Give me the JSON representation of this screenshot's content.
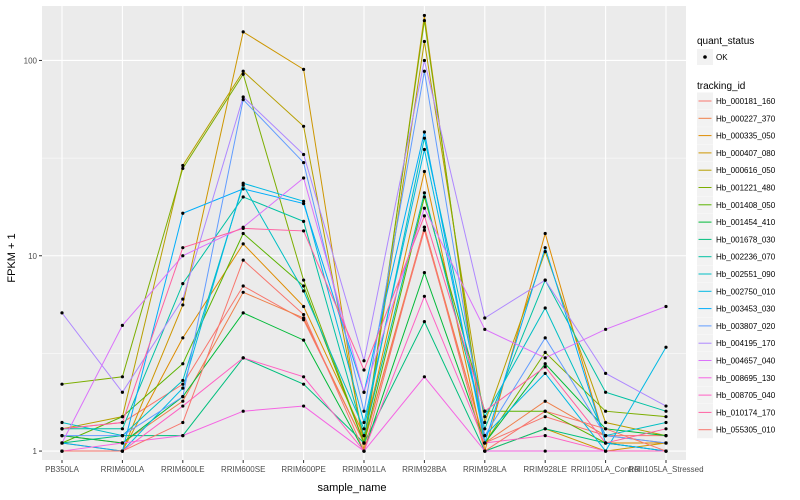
{
  "chart_data": {
    "type": "line",
    "xlabel": "sample_name",
    "ylabel": "FPKM + 1",
    "y_scale": "log10",
    "ylim": [
      0.9,
      190
    ],
    "y_ticks": [
      1,
      10,
      100
    ],
    "y_tick_labels": [
      "1",
      "10",
      "100"
    ],
    "grid": true,
    "legend_position": "right",
    "categories": [
      "PB350LA",
      "RRIM600LA",
      "RRIM600LE",
      "RRIM600SE",
      "RRIM600PE",
      "RRIM901LA",
      "RRIM928BA",
      "RRIM928LA",
      "RRIM928LE",
      "RRII105LA_Control",
      "RRII105LA_Stressed"
    ],
    "legend_shape": {
      "title": "quant_status",
      "entries": [
        "OK"
      ]
    },
    "legend_color": {
      "title": "tracking_id"
    },
    "series": [
      {
        "name": "Hb_000181_160",
        "color": "#F8766D",
        "values": [
          1.3,
          1.4,
          2.2,
          7.0,
          4.7,
          1.1,
          13.5,
          1.1,
          1.5,
          1.2,
          1.2
        ]
      },
      {
        "name": "Hb_000227_370",
        "color": "#EF7F49",
        "values": [
          1.2,
          1.1,
          1.8,
          6.5,
          4.8,
          1.1,
          14.0,
          1.1,
          1.8,
          1.2,
          1.1
        ]
      },
      {
        "name": "Hb_000335_050",
        "color": "#DE8C00",
        "values": [
          1.1,
          1.0,
          3.8,
          11.5,
          5.5,
          1.2,
          27.0,
          1.0,
          13.0,
          1.1,
          1.1
        ]
      },
      {
        "name": "Hb_000407_080",
        "color": "#CD9600",
        "values": [
          1.0,
          1.0,
          5.6,
          140,
          90,
          1.0,
          170,
          1.0,
          1.3,
          1.0,
          1.1
        ]
      },
      {
        "name": "Hb_000616_050",
        "color": "#B79F00",
        "values": [
          1.3,
          1.5,
          29.0,
          88,
          46,
          1.1,
          125,
          1.4,
          10.5,
          1.4,
          1.2
        ]
      },
      {
        "name": "Hb_001221_480",
        "color": "#7CAE00",
        "values": [
          2.2,
          2.4,
          28.0,
          85,
          7.5,
          1.1,
          160,
          1.1,
          3.2,
          1.6,
          1.5
        ]
      },
      {
        "name": "Hb_001408_050",
        "color": "#5BB300",
        "values": [
          1.1,
          1.5,
          2.8,
          13.0,
          7.0,
          1.1,
          20.0,
          1.6,
          1.6,
          1.1,
          1.0
        ]
      },
      {
        "name": "Hb_001454_410",
        "color": "#00BA38",
        "values": [
          1.2,
          1.1,
          1.9,
          5.1,
          3.7,
          1.0,
          8.2,
          1.1,
          2.8,
          1.3,
          1.2
        ]
      },
      {
        "name": "Hb_001678_030",
        "color": "#00BF7D",
        "values": [
          1.1,
          1.2,
          1.2,
          3.0,
          2.2,
          1.1,
          4.6,
          1.0,
          1.3,
          1.1,
          1.0
        ]
      },
      {
        "name": "Hb_002236_070",
        "color": "#00C1A3",
        "values": [
          1.3,
          1.3,
          7.2,
          20.0,
          15.0,
          1.2,
          21.0,
          1.3,
          7.5,
          2.0,
          1.6
        ]
      },
      {
        "name": "Hb_002551_090",
        "color": "#00BFC4",
        "values": [
          1.4,
          1.2,
          2.3,
          23.0,
          6.6,
          1.3,
          40.0,
          1.5,
          5.4,
          1.2,
          1.4
        ]
      },
      {
        "name": "Hb_002750_010",
        "color": "#00B9E3",
        "values": [
          1.0,
          1.0,
          2.1,
          23.5,
          19.0,
          1.4,
          35.0,
          1.2,
          2.5,
          1.0,
          3.4
        ]
      },
      {
        "name": "Hb_003453_030",
        "color": "#00ADFA",
        "values": [
          1.1,
          1.0,
          16.5,
          22.0,
          18.5,
          2.0,
          43.0,
          1.1,
          11.0,
          1.1,
          1.0
        ]
      },
      {
        "name": "Hb_003807_020",
        "color": "#619CFF",
        "values": [
          1.2,
          1.2,
          1.9,
          63,
          30,
          1.6,
          88,
          1.2,
          3.8,
          1.2,
          1.1
        ]
      },
      {
        "name": "Hb_004195_170",
        "color": "#AE87FF",
        "values": [
          5.1,
          2.0,
          6.0,
          65,
          33,
          2.9,
          100,
          4.8,
          7.5,
          2.5,
          1.7
        ]
      },
      {
        "name": "Hb_004657_040",
        "color": "#DB72FB",
        "values": [
          1.1,
          4.4,
          10.0,
          14.0,
          25.0,
          2.0,
          17.5,
          4.2,
          3.0,
          4.2,
          5.5
        ]
      },
      {
        "name": "Hb_008695_130",
        "color": "#F564E3",
        "values": [
          1.0,
          1.1,
          1.2,
          1.6,
          1.7,
          1.0,
          2.4,
          1.0,
          1.0,
          1.0,
          1.0
        ]
      },
      {
        "name": "Hb_008705_040",
        "color": "#FF61C3",
        "values": [
          1.0,
          1.0,
          1.7,
          3.0,
          2.4,
          1.0,
          6.2,
          1.1,
          1.2,
          1.0,
          1.0
        ]
      },
      {
        "name": "Hb_010174_170",
        "color": "#FF61A1",
        "values": [
          1.3,
          1.4,
          11.0,
          13.8,
          13.4,
          2.6,
          16.0,
          1.6,
          2.7,
          1.1,
          1.3
        ]
      },
      {
        "name": "Hb_055305_010",
        "color": "#F8766D",
        "values": [
          1.0,
          1.0,
          1.4,
          9.5,
          5.0,
          1.0,
          14.0,
          1.0,
          1.6,
          1.3,
          1.0
        ]
      }
    ]
  }
}
